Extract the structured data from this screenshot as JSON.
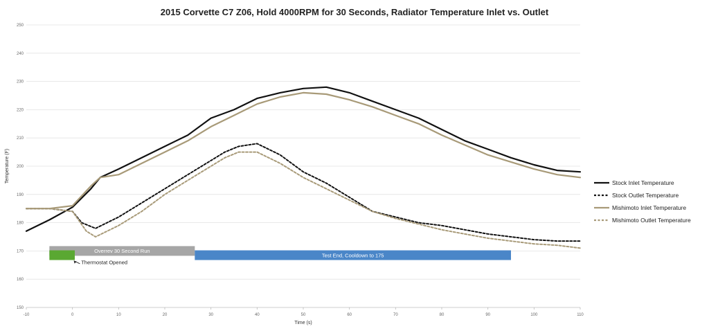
{
  "chart_data": {
    "type": "line",
    "title": "2015 Corvette C7 Z06, Hold 4000RPM for 30 Seconds, Radiator Temperature Inlet vs. Outlet",
    "xlabel": "Time (s)",
    "ylabel": "Temperature (F)",
    "xlim": [
      -10,
      110
    ],
    "ylim": [
      150,
      250
    ],
    "x_ticks": [
      -10,
      0,
      10,
      20,
      30,
      40,
      50,
      60,
      70,
      80,
      90,
      100,
      110
    ],
    "y_ticks": [
      150,
      160,
      170,
      180,
      190,
      200,
      210,
      220,
      230,
      240,
      250
    ],
    "x_tick_labels": [
      "-10",
      "0",
      "10",
      "20",
      "30",
      "40",
      "50",
      "60",
      "70",
      "80",
      "90",
      "100",
      "110"
    ],
    "y_tick_labels": [
      "150",
      "160",
      "170",
      "180",
      "190",
      "200",
      "210",
      "220",
      "230",
      "240",
      "250"
    ],
    "grid": true,
    "legend_position": "right",
    "series": [
      {
        "name": "Stock Inlet Temperature",
        "color": "#111111",
        "style": "solid",
        "x": [
          -10,
          -5,
          0,
          4,
          6,
          10,
          15,
          20,
          25,
          30,
          35,
          40,
          45,
          50,
          55,
          60,
          65,
          70,
          75,
          80,
          85,
          90,
          95,
          100,
          105,
          110
        ],
        "y": [
          177,
          181,
          185.5,
          192,
          196,
          199,
          203,
          207,
          211,
          217,
          220,
          224,
          226,
          227.5,
          228,
          226,
          223,
          220,
          217,
          213,
          209,
          206,
          203,
          200.5,
          198.5,
          198
        ]
      },
      {
        "name": "Stock Outlet Temperature",
        "color": "#111111",
        "style": "dashed",
        "x": [
          -10,
          -5,
          0,
          2,
          5,
          10,
          15,
          20,
          25,
          30,
          33,
          36,
          40,
          45,
          50,
          55,
          60,
          65,
          70,
          75,
          80,
          85,
          90,
          95,
          100,
          105,
          110
        ],
        "y": [
          185,
          185,
          184,
          180,
          178,
          182,
          187,
          192,
          197,
          202,
          205,
          207,
          208,
          204,
          198,
          194,
          189,
          184,
          182,
          180,
          179,
          177.5,
          176,
          175,
          174,
          173.5,
          173.5
        ]
      },
      {
        "name": "Mishimoto Inlet Temperature",
        "color": "#a89a78",
        "style": "solid",
        "x": [
          -10,
          -5,
          0,
          4,
          6,
          10,
          15,
          20,
          25,
          30,
          35,
          40,
          45,
          50,
          55,
          60,
          65,
          70,
          75,
          80,
          85,
          90,
          95,
          100,
          105,
          110
        ],
        "y": [
          185,
          185,
          186,
          193,
          196,
          197,
          201,
          205,
          209,
          214,
          218,
          222,
          224.5,
          226,
          225.5,
          223.5,
          221,
          218,
          215,
          211,
          207.5,
          204,
          201.5,
          199,
          197,
          196
        ]
      },
      {
        "name": "Mishimoto Outlet Temperature",
        "color": "#a89a78",
        "style": "dashed",
        "x": [
          -10,
          -5,
          0,
          3,
          5,
          10,
          15,
          20,
          25,
          30,
          33,
          36,
          40,
          45,
          50,
          55,
          60,
          65,
          70,
          75,
          80,
          85,
          90,
          95,
          100,
          105,
          110
        ],
        "y": [
          185,
          185,
          184,
          177,
          175,
          179,
          184,
          190,
          195,
          200,
          203,
          205,
          205,
          201,
          196,
          192,
          188,
          184,
          181.5,
          179.5,
          177.5,
          176,
          174.5,
          173.5,
          172.5,
          172,
          171
        ]
      }
    ],
    "annotations": [
      {
        "label": "Overrev 30 Second Run",
        "x_start": -5,
        "x_end": 26.5,
        "y_center": 170,
        "color": "#a6a6a6",
        "text_color": "#ffffff"
      },
      {
        "label": "Test End, Cooldown to 175",
        "x_start": 26.5,
        "x_end": 95,
        "y_center": 168.5,
        "color": "#4a86c8",
        "text_color": "#ffffff"
      },
      {
        "label": "",
        "x_start": -5,
        "x_end": 0.5,
        "y_center": 168.5,
        "color": "#5aa832",
        "text_color": "#ffffff"
      },
      {
        "label": "Thermostat Opened",
        "x": 1,
        "y": 166,
        "arrow_from": [
          1,
          165
        ],
        "arrow_to": [
          0,
          167
        ],
        "color": "#222222"
      }
    ]
  }
}
